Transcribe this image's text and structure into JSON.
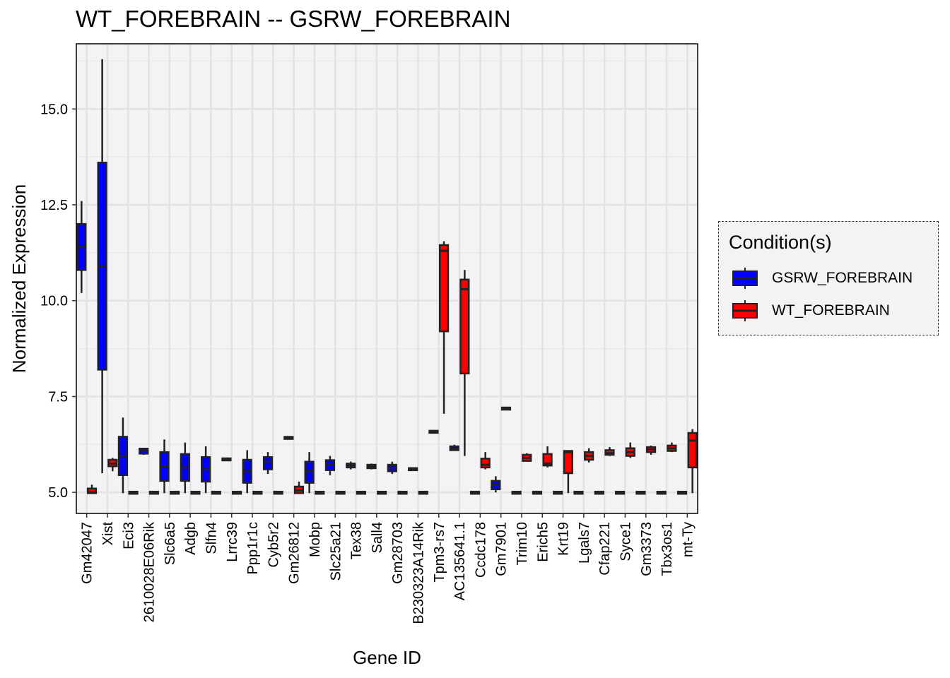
{
  "chart_data": {
    "type": "boxplot",
    "title": "WT_FOREBRAIN -- GSRW_FOREBRAIN",
    "xlabel": "Gene ID",
    "ylabel": "Normalized Expression",
    "ylim": [
      4.45,
      16.7
    ],
    "yticks": [
      "5.0",
      "7.5",
      "10.0",
      "12.5",
      "15.0"
    ],
    "grid": true,
    "legend_position": "right",
    "legend_title": "Condition(s)",
    "categories": [
      "Gm42047",
      "Xist",
      "Eci3",
      "2610028E06Rik",
      "Slc6a5",
      "Adgb",
      "Slfn4",
      "Lrrc39",
      "Ppp1r1c",
      "Cyb5r2",
      "Gm26812",
      "Mobp",
      "Slc25a21",
      "Tex38",
      "Sall4",
      "Gm28703",
      "B230323A14Rik",
      "Tpm3-rs7",
      "AC135641.1",
      "Ccdc178",
      "Gm7901",
      "Trim10",
      "Erich5",
      "Krt19",
      "Lgals7",
      "Cfap221",
      "Syce1",
      "Gm3373",
      "Tbx3os1",
      "mt-Ty"
    ],
    "series": [
      {
        "name": "GSRW_FOREBRAIN",
        "color": "#0000ff",
        "boxes": [
          [
            10.2,
            10.8,
            11.4,
            12.0,
            12.6
          ],
          [
            5.5,
            8.2,
            10.9,
            13.6,
            16.3
          ],
          [
            4.98,
            5.45,
            5.95,
            6.45,
            6.95
          ],
          [
            5.98,
            6.01,
            6.08,
            6.14,
            6.16
          ],
          [
            4.98,
            5.3,
            5.68,
            6.05,
            6.38
          ],
          [
            4.98,
            5.3,
            5.65,
            6.0,
            6.3
          ],
          [
            4.98,
            5.28,
            5.6,
            5.92,
            6.2
          ],
          [
            5.82,
            5.84,
            5.86,
            5.88,
            5.9
          ],
          [
            4.98,
            5.25,
            5.55,
            5.85,
            6.1
          ],
          [
            5.48,
            5.6,
            5.8,
            5.92,
            6.05
          ],
          [
            6.4,
            6.41,
            6.42,
            6.43,
            6.44
          ],
          [
            4.98,
            5.25,
            5.55,
            5.8,
            6.05
          ],
          [
            5.45,
            5.58,
            5.72,
            5.84,
            5.95
          ],
          [
            5.6,
            5.65,
            5.7,
            5.75,
            5.8
          ],
          [
            5.6,
            5.63,
            5.68,
            5.72,
            5.75
          ],
          [
            5.48,
            5.55,
            5.65,
            5.72,
            5.8
          ],
          [
            5.58,
            5.59,
            5.6,
            5.62,
            5.63
          ],
          [
            6.55,
            6.56,
            6.58,
            6.6,
            6.62
          ],
          [
            6.08,
            6.1,
            6.14,
            6.2,
            6.24
          ],
          [
            4.98,
            4.98,
            4.99,
            5.0,
            5.0
          ],
          [
            5.0,
            5.08,
            5.2,
            5.3,
            5.42
          ],
          [
            4.98,
            4.98,
            4.99,
            5.0,
            5.0
          ],
          [
            4.98,
            4.98,
            4.99,
            5.0,
            5.0
          ],
          [
            4.98,
            4.98,
            4.99,
            5.0,
            5.0
          ],
          [
            4.98,
            4.98,
            4.99,
            5.0,
            5.0
          ],
          [
            4.98,
            4.98,
            4.99,
            5.0,
            5.0
          ],
          [
            4.98,
            4.98,
            4.99,
            5.0,
            5.0
          ],
          [
            4.98,
            4.98,
            4.99,
            5.0,
            5.0
          ],
          [
            4.98,
            4.98,
            4.99,
            5.0,
            5.0
          ],
          [
            4.98,
            4.98,
            4.99,
            5.0,
            5.0
          ]
        ]
      },
      {
        "name": "WT_FOREBRAIN",
        "color": "#ff0000",
        "boxes": [
          [
            4.98,
            4.98,
            5.0,
            5.1,
            5.2
          ],
          [
            5.55,
            5.68,
            5.75,
            5.85,
            5.9
          ],
          [
            4.98,
            4.98,
            4.99,
            5.0,
            5.0
          ],
          [
            4.98,
            4.98,
            4.99,
            5.0,
            5.0
          ],
          [
            4.98,
            4.98,
            4.99,
            5.0,
            5.0
          ],
          [
            4.98,
            4.98,
            4.99,
            5.0,
            5.0
          ],
          [
            4.98,
            4.98,
            4.99,
            5.0,
            5.0
          ],
          [
            4.98,
            4.98,
            4.99,
            5.0,
            5.0
          ],
          [
            4.98,
            4.98,
            4.99,
            5.0,
            5.0
          ],
          [
            4.98,
            4.98,
            4.99,
            5.0,
            5.0
          ],
          [
            4.98,
            4.98,
            5.05,
            5.15,
            5.28
          ],
          [
            4.98,
            4.98,
            4.99,
            5.0,
            5.0
          ],
          [
            4.98,
            4.98,
            4.99,
            5.0,
            5.0
          ],
          [
            4.98,
            4.98,
            4.99,
            5.0,
            5.0
          ],
          [
            4.98,
            4.98,
            4.99,
            5.0,
            5.0
          ],
          [
            4.98,
            4.98,
            4.99,
            5.0,
            5.0
          ],
          [
            4.98,
            4.98,
            4.99,
            5.0,
            5.0
          ],
          [
            7.05,
            9.2,
            11.3,
            11.45,
            11.55
          ],
          [
            5.95,
            8.1,
            10.3,
            10.55,
            10.8
          ],
          [
            5.6,
            5.65,
            5.72,
            5.88,
            6.05
          ],
          [
            7.16,
            7.17,
            7.18,
            7.2,
            7.21
          ],
          [
            5.8,
            5.82,
            5.9,
            5.98,
            6.02
          ],
          [
            5.65,
            5.7,
            5.75,
            6.0,
            6.2
          ],
          [
            4.98,
            5.5,
            6.05,
            6.08,
            6.1
          ],
          [
            5.78,
            5.85,
            5.95,
            6.05,
            6.15
          ],
          [
            5.95,
            5.98,
            6.02,
            6.1,
            6.18
          ],
          [
            5.9,
            5.95,
            6.05,
            6.15,
            6.3
          ],
          [
            5.98,
            6.05,
            6.12,
            6.18,
            6.22
          ],
          [
            6.05,
            6.08,
            6.15,
            6.22,
            6.3
          ],
          [
            4.98,
            5.65,
            6.35,
            6.55,
            6.65
          ]
        ]
      }
    ]
  }
}
